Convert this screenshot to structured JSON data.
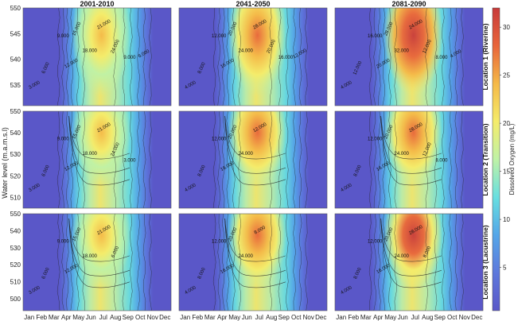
{
  "chart_data": {
    "type": "heatmap",
    "columns": [
      "2001-2010",
      "2041-2050",
      "2081-2090"
    ],
    "rows": [
      "Location 1 (Riverine)",
      "Location 2 (Transition)",
      "Location 3 (Lacustrine)"
    ],
    "ylabel": "Water level (m.a.m.s.l)",
    "months": [
      "Jan",
      "Feb",
      "Mar",
      "Apr",
      "May",
      "Jun",
      "Jul",
      "Aug",
      "Sep",
      "Oct",
      "Nov",
      "Dec"
    ],
    "row_axes": [
      {
        "ylim": [
          531,
          550
        ],
        "ticks": [
          535,
          540,
          545,
          550
        ]
      },
      {
        "ylim": [
          505,
          550
        ],
        "ticks": [
          510,
          520,
          530,
          540,
          550
        ]
      },
      {
        "ylim": [
          493,
          550
        ],
        "ticks": [
          500,
          510,
          520,
          530,
          540,
          550
        ]
      }
    ],
    "colorbar": {
      "label": "Dissolved Oxygen (mg/L)",
      "min": 0.5,
      "max": 32,
      "ticks": [
        5,
        10,
        15,
        20,
        25,
        30
      ],
      "colors": [
        "#5a57c8",
        "#5d78dc",
        "#54a6e8",
        "#68dfe0",
        "#bff2a6",
        "#f5ec6a",
        "#f5b947",
        "#e8643a",
        "#c83a3a"
      ]
    },
    "panels": [
      {
        "row": 0,
        "col": 0,
        "peak": 26,
        "contours": [
          "3.000",
          "6.000",
          "9.000",
          "12.000",
          "15.000",
          "18.000",
          "21.000",
          "24.000",
          "9.000",
          "6.000"
        ]
      },
      {
        "row": 0,
        "col": 1,
        "peak": 29,
        "contours": [
          "4.000",
          "8.000",
          "12.000",
          "16.000",
          "20.000",
          "24.000",
          "28.000",
          "20.000",
          "16.000",
          "12.000"
        ]
      },
      {
        "row": 0,
        "col": 2,
        "peak": 32,
        "contours": [
          "4.000",
          "12.000",
          "16.000",
          "20.000",
          "28.000",
          "32.000",
          "24.000",
          "12.000",
          "8.000",
          "4.000"
        ]
      },
      {
        "row": 1,
        "col": 0,
        "peak": 26,
        "contours": [
          "3.000",
          "6.000",
          "9.000",
          "12.000",
          "15.000",
          "18.000",
          "21.000",
          "24.000",
          "3.000"
        ]
      },
      {
        "row": 1,
        "col": 1,
        "peak": 27,
        "contours": [
          "4.000",
          "8.000",
          "12.000",
          "16.000",
          "20.000",
          "24.000",
          "12.000"
        ]
      },
      {
        "row": 1,
        "col": 2,
        "peak": 30,
        "contours": [
          "4.000",
          "8.000",
          "12.000",
          "16.000",
          "20.000",
          "24.000",
          "28.000",
          "12.000",
          "8.000"
        ]
      },
      {
        "row": 2,
        "col": 0,
        "peak": 24,
        "contours": [
          "3.000",
          "6.000",
          "9.000",
          "12.000",
          "15.000",
          "18.000",
          "21.000",
          "6.000"
        ]
      },
      {
        "row": 2,
        "col": 1,
        "peak": 27,
        "contours": [
          "4.000",
          "8.000",
          "12.000",
          "16.000",
          "20.000",
          "24.000",
          "8.000"
        ]
      },
      {
        "row": 2,
        "col": 2,
        "peak": 31,
        "contours": [
          "4.000",
          "8.000",
          "12.000",
          "16.000",
          "20.000",
          "24.000",
          "28.000",
          "8.000"
        ]
      }
    ]
  }
}
